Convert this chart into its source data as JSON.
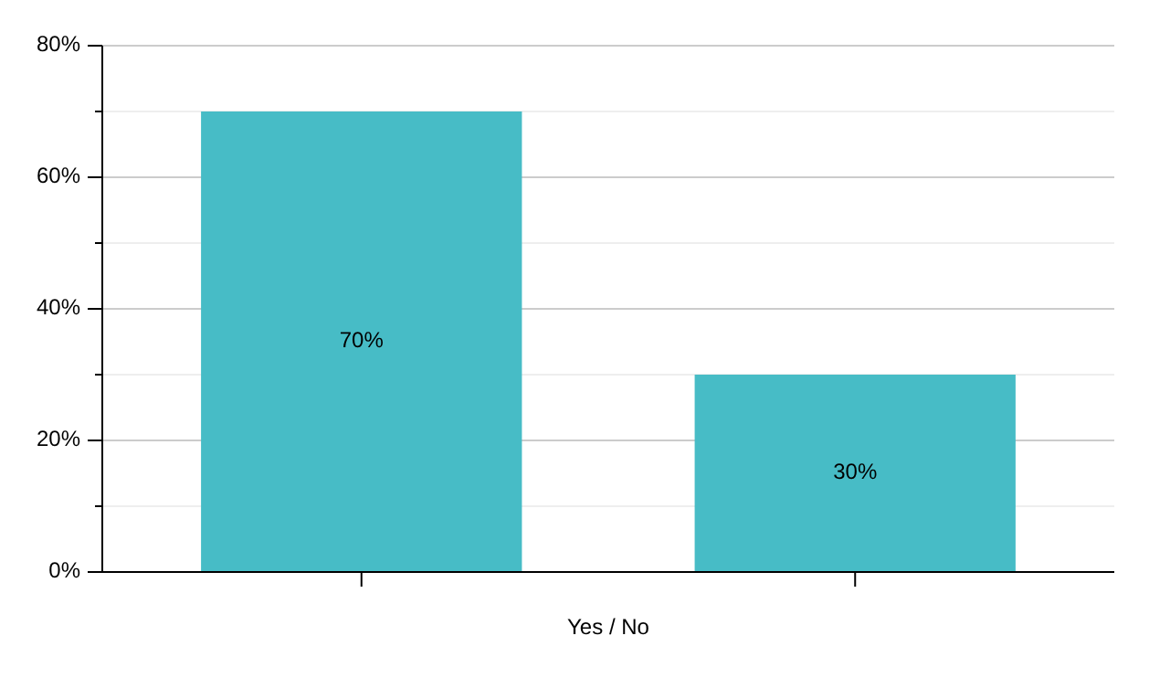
{
  "chart_data": {
    "type": "bar",
    "xlabel": "Yes / No",
    "categories": [
      null,
      null
    ],
    "values": [
      70,
      30
    ],
    "color": "#47bcc6",
    "data_labels": true,
    "value_labels": [
      "70%",
      "30%"
    ],
    "ylim": [
      0,
      80
    ],
    "yticks": [
      {
        "value": 0,
        "label": "0%"
      },
      {
        "value": 10,
        "label": null
      },
      {
        "value": 20,
        "label": "20%"
      },
      {
        "value": 30,
        "label": null
      },
      {
        "value": 40,
        "label": "40%"
      },
      {
        "value": 50,
        "label": null
      },
      {
        "value": 60,
        "label": "60%"
      },
      {
        "value": 70,
        "label": null
      },
      {
        "value": 80,
        "label": "80%"
      }
    ],
    "grid": "y"
  }
}
